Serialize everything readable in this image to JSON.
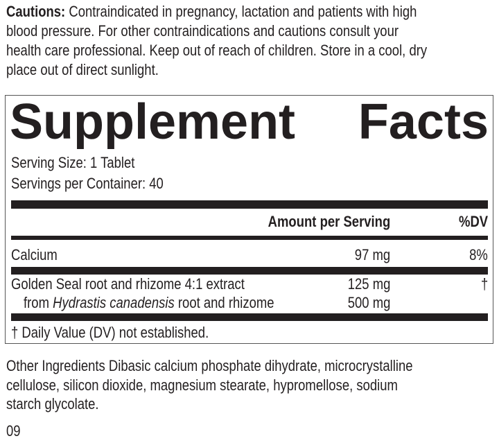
{
  "cautions": {
    "label": "Cautions:",
    "lines": [
      " Contraindicated in pregnancy, lactation and patients with high",
      "blood pressure. For other contraindications and cautions consult your",
      "health care professional. Keep out of reach of children. Store in a cool, dry",
      "place out of direct sunlight."
    ]
  },
  "facts": {
    "title_left": "Supplement",
    "title_right": "Facts",
    "serving_size": "Serving Size: 1 Tablet",
    "servings_per_container": "Servings per Container: 40",
    "header_amount": "Amount per Serving",
    "header_dv": "%DV",
    "rows": [
      {
        "name": "Calcium",
        "amount": "97 mg",
        "dv": "8%"
      },
      {
        "name": "Golden Seal root and rhizome 4:1 extract",
        "amount": "125 mg",
        "dv": "†"
      }
    ],
    "sub_row": {
      "prefix": "from ",
      "italic": "Hydrastis canadensis",
      "suffix": " root and rhizome",
      "amount": "500 mg"
    },
    "footnote": "† Daily Value (DV) not established."
  },
  "other_ingredients": {
    "lines": [
      "Other Ingredients Dibasic calcium phosphate dihydrate, microcrystalline",
      "cellulose, silicon dioxide, magnesium stearate, hypromellose, sodium",
      "starch glycolate."
    ]
  },
  "code": "09"
}
